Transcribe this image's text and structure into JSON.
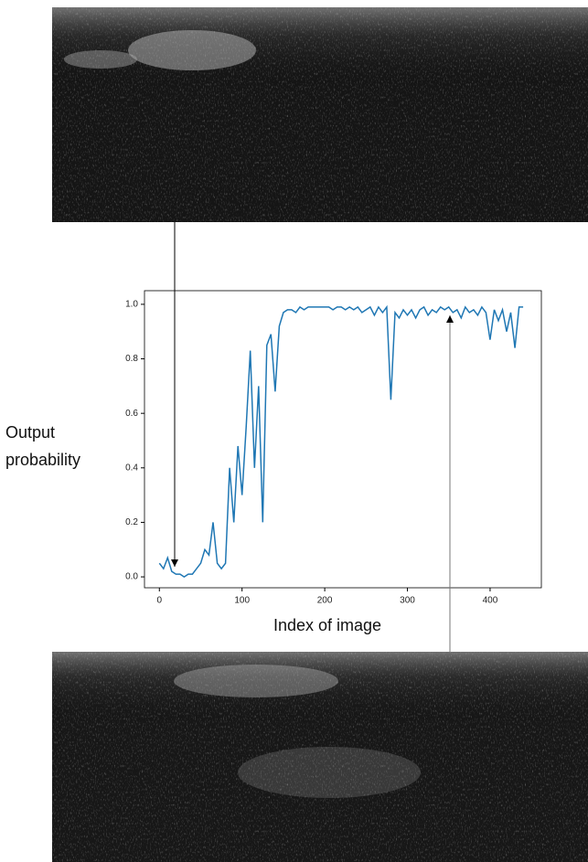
{
  "chart_data": {
    "type": "line",
    "xlabel": "Index of image",
    "ylabel": "Output probability",
    "x": [
      0,
      5,
      10,
      15,
      20,
      25,
      30,
      35,
      40,
      45,
      50,
      55,
      60,
      65,
      70,
      75,
      80,
      85,
      90,
      95,
      100,
      105,
      110,
      115,
      120,
      125,
      130,
      135,
      140,
      145,
      150,
      155,
      160,
      165,
      170,
      175,
      180,
      185,
      190,
      195,
      200,
      205,
      210,
      215,
      220,
      225,
      230,
      235,
      240,
      245,
      250,
      255,
      260,
      265,
      270,
      275,
      280,
      285,
      290,
      295,
      300,
      305,
      310,
      315,
      320,
      325,
      330,
      335,
      340,
      345,
      350,
      355,
      360,
      365,
      370,
      375,
      380,
      385,
      390,
      395,
      400,
      405,
      410,
      415,
      420,
      425,
      430,
      435,
      440
    ],
    "series": [
      {
        "color": "#1f77b4",
        "values": [
          0.05,
          0.03,
          0.07,
          0.02,
          0.01,
          0.01,
          0.0,
          0.01,
          0.01,
          0.03,
          0.05,
          0.1,
          0.08,
          0.2,
          0.05,
          0.03,
          0.05,
          0.4,
          0.2,
          0.48,
          0.3,
          0.55,
          0.83,
          0.4,
          0.7,
          0.2,
          0.85,
          0.89,
          0.68,
          0.92,
          0.97,
          0.98,
          0.98,
          0.97,
          0.99,
          0.98,
          0.99,
          0.99,
          0.99,
          0.99,
          0.99,
          0.99,
          0.98,
          0.99,
          0.99,
          0.98,
          0.99,
          0.98,
          0.99,
          0.97,
          0.98,
          0.99,
          0.96,
          0.99,
          0.97,
          0.99,
          0.65,
          0.97,
          0.95,
          0.98,
          0.96,
          0.98,
          0.95,
          0.98,
          0.99,
          0.96,
          0.98,
          0.97,
          0.99,
          0.98,
          0.99,
          0.97,
          0.98,
          0.95,
          0.99,
          0.97,
          0.98,
          0.96,
          0.99,
          0.97,
          0.87,
          0.98,
          0.94,
          0.98,
          0.9,
          0.97,
          0.84,
          0.99,
          0.99
        ]
      }
    ],
    "xlim": [
      -18,
      462
    ],
    "xticks": [
      0,
      100,
      200,
      300,
      400
    ],
    "ylim": [
      -0.04,
      1.05
    ],
    "yticks": [
      {
        "value": 0,
        "label": "0.0"
      },
      {
        "value": 0.2,
        "label": "0.2"
      },
      {
        "value": 0.4,
        "label": "0.4"
      },
      {
        "value": 0.6,
        "label": "0.6"
      },
      {
        "value": 0.8,
        "label": "0.8"
      },
      {
        "value": 1,
        "label": "1.0"
      }
    ]
  }
}
